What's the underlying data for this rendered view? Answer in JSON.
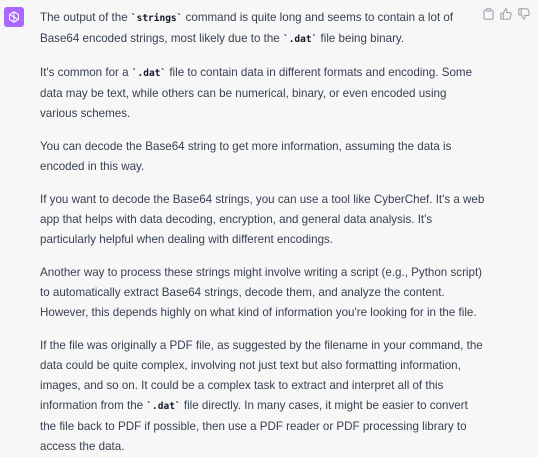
{
  "assistant": {
    "avatar_icon": "openai-logo-icon",
    "avatar_color": "#ab68ff"
  },
  "actions": {
    "copy_icon": "clipboard-icon",
    "like_icon": "thumbs-up-icon",
    "dislike_icon": "thumbs-down-icon"
  },
  "message": {
    "p1": {
      "text_a": "The output of the ",
      "code_a": "`strings`",
      "text_b": " command is quite long and seems to contain a lot of Base64 encoded strings, most likely due to the ",
      "code_b": "`.dat`",
      "text_c": " file being binary."
    },
    "p2": {
      "text_a": "It's common for a ",
      "code_a": "`.dat`",
      "text_b": " file to contain data in different formats and encoding. Some data may be text, while others can be numerical, binary, or even encoded using various schemes."
    },
    "p3": "You can decode the Base64 string to get more information, assuming the data is encoded in this way.",
    "p4": "If you want to decode the Base64 strings, you can use a tool like CyberChef. It's a web app that helps with data decoding, encryption, and general data analysis. It's particularly helpful when dealing with different encodings.",
    "p5": "Another way to process these strings might involve writing a script (e.g., Python script) to automatically extract Base64 strings, decode them, and analyze the content. However, this depends highly on what kind of information you're looking for in the file.",
    "p6": {
      "text_a": "If the file was originally a PDF file, as suggested by the filename in your command, the data could be quite complex, involving not just text but also formatting information, images, and so on. It could be a complex task to extract and interpret all of this information from the ",
      "code_a": "`.dat`",
      "text_b": " file directly. In many cases, it might be easier to convert the file back to PDF if possible, then use a PDF reader or PDF processing library to access the data."
    }
  }
}
